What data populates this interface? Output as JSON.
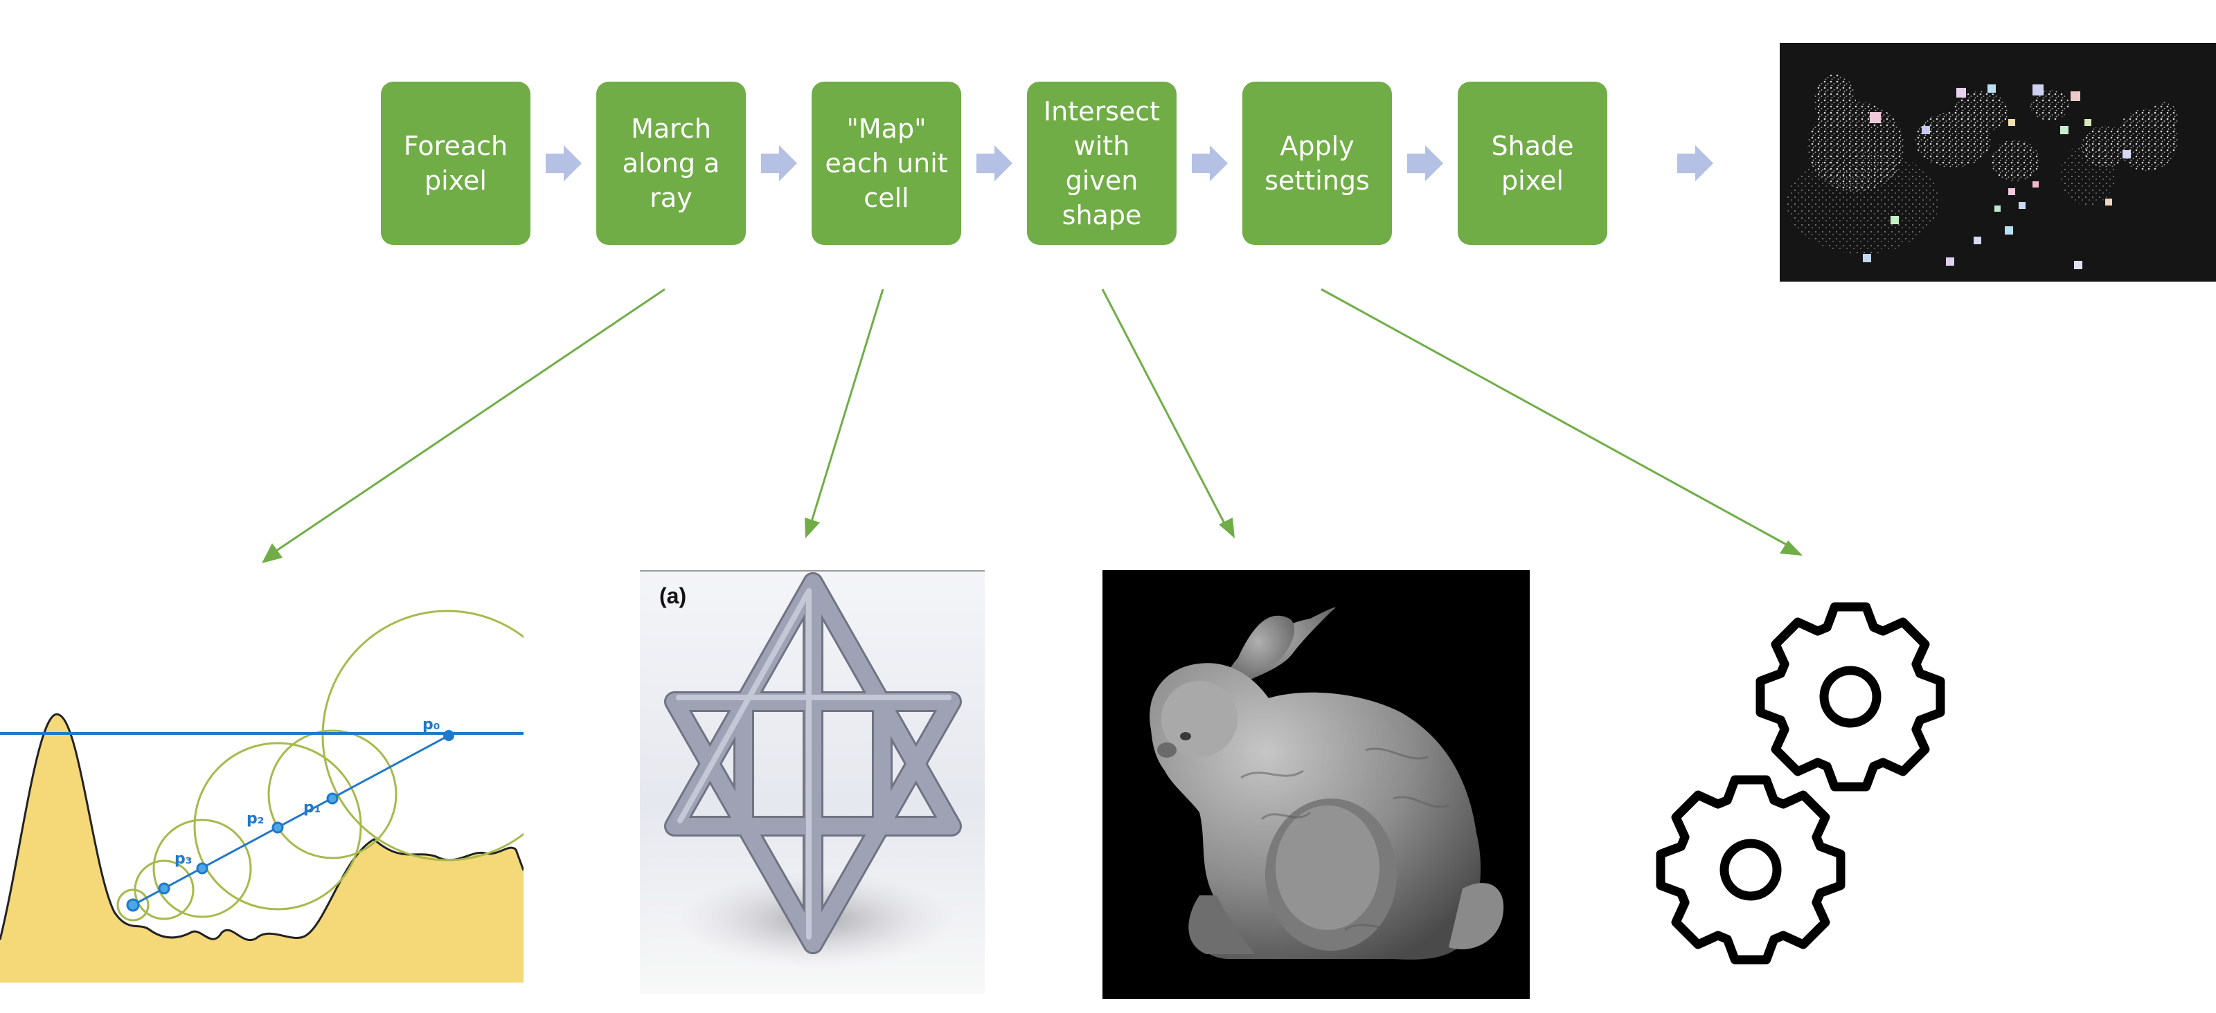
{
  "pipeline": {
    "steps": [
      {
        "label": "Foreach\npixel"
      },
      {
        "label": "March\nalong a\nray"
      },
      {
        "label": "\"Map\"\neach unit\ncell"
      },
      {
        "label": "Intersect\nwith\ngiven\nshape"
      },
      {
        "label": "Apply\nsettings"
      },
      {
        "label": "Shade\npixel"
      }
    ]
  },
  "illustrations": {
    "sphere_trace": {
      "point_labels": [
        "p₀",
        "p₁",
        "p₂",
        "p₃"
      ]
    },
    "unit_cell": {
      "panel_label": "(a)"
    }
  },
  "colors": {
    "step_fill": "#70ad47",
    "step_text": "#ffffff",
    "chevron": "#b4c0e4",
    "connector": "#70ad47",
    "ray_blue": "#1f78c8",
    "terrain_fill": "#f5d877",
    "circle_stroke": "#a7b94a"
  },
  "icons": {
    "chevron": "chevron-right-icon",
    "gear": "gear-icon"
  }
}
